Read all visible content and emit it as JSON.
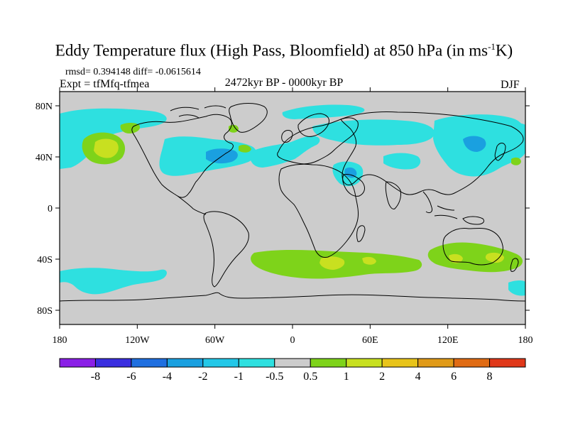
{
  "title": {
    "main": "Eddy Temperature flux (High Pass, Bloomfield) at 850 hPa (in ms",
    "sup": "-1",
    "tail": "K)"
  },
  "stats": "rmsd= 0.394148 diff= -0.0615614",
  "experiment": "Expt = tfMfq-tfmea",
  "period": "2472kyr BP - 0000kyr BP",
  "season": "DJF",
  "axes": {
    "x_ticks": [
      "180",
      "120W",
      "60W",
      "0",
      "60E",
      "120E",
      "180"
    ],
    "y_ticks": [
      "80N",
      "40N",
      "0",
      "40S",
      "80S"
    ]
  },
  "colorbar": {
    "labels": [
      "-8",
      "-6",
      "-4",
      "-2",
      "-1",
      "-0.5",
      "0.5",
      "1",
      "2",
      "4",
      "6",
      "8"
    ],
    "colors": [
      "#8a1fe6",
      "#3a2ee0",
      "#1f6fe0",
      "#1aa0e0",
      "#23c8e8",
      "#2ee0e0",
      "#cccccc",
      "#7ed31a",
      "#c8e020",
      "#e8c41a",
      "#e09a18",
      "#e06b14",
      "#e0381a"
    ]
  },
  "colors": {
    "background_gray": "#cccccc",
    "cyan": "#2ee0e0",
    "light_blue": "#23c8e8",
    "blue": "#1aa0e0",
    "green": "#7ed31a",
    "yellow_green": "#c8e020"
  }
}
